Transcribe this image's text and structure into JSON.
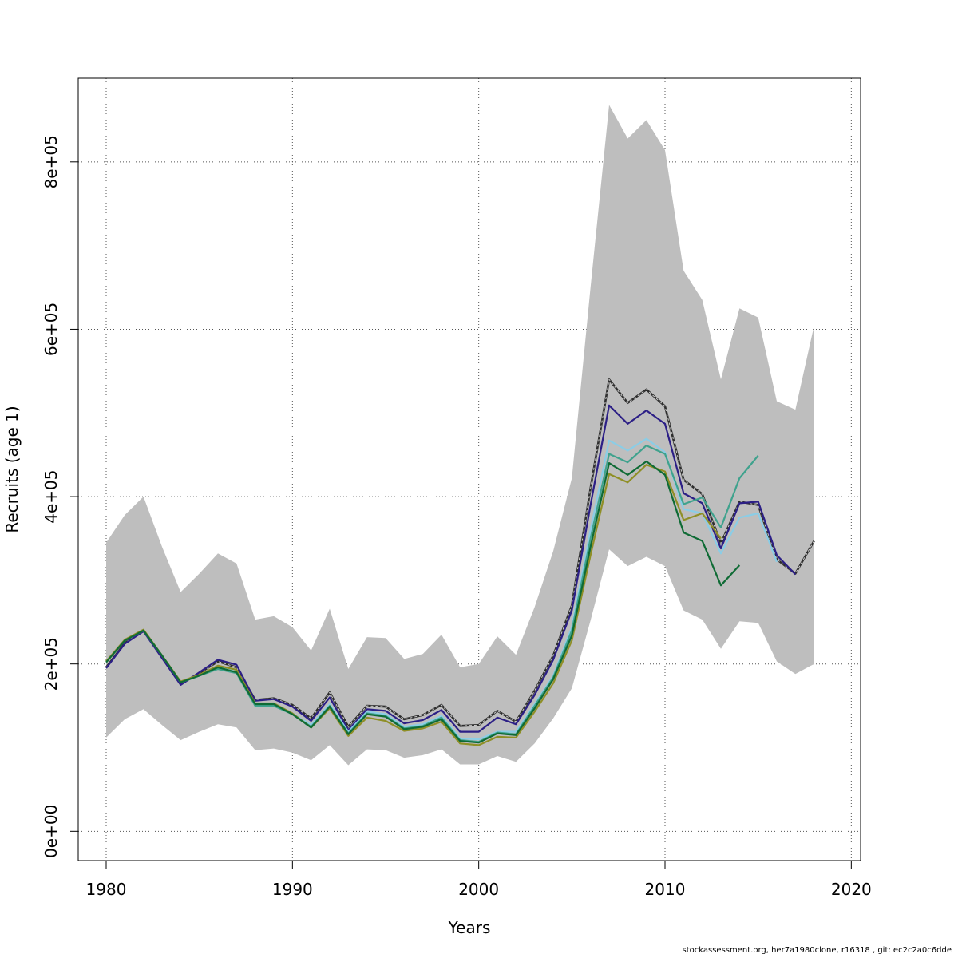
{
  "chart_data": {
    "type": "line",
    "title": "",
    "xlabel": "Years",
    "ylabel": "Recruits (age 1)",
    "xlim": [
      1978.5,
      2020.5
    ],
    "ylim": [
      -35000,
      900000
    ],
    "xticks": [
      1980,
      1990,
      2000,
      2010,
      2020
    ],
    "xtick_labels": [
      "1980",
      "1990",
      "2000",
      "2010",
      "2020"
    ],
    "yticks": [
      0,
      200000,
      400000,
      600000,
      800000
    ],
    "ytick_labels": [
      "0e+00",
      "2e+05",
      "4e+05",
      "6e+05",
      "8e+05"
    ],
    "grid": true,
    "band": {
      "color": "#bebebe",
      "x": [
        1980,
        1981,
        1982,
        1983,
        1984,
        1985,
        1986,
        1987,
        1988,
        1989,
        1990,
        1991,
        1992,
        1993,
        1994,
        1995,
        1996,
        1997,
        1998,
        1999,
        2000,
        2001,
        2002,
        2003,
        2004,
        2005,
        2006,
        2007,
        2008,
        2009,
        2010,
        2011,
        2012,
        2013,
        2014,
        2015,
        2016,
        2017,
        2018
      ],
      "upper": [
        345000,
        378000,
        400000,
        340000,
        286000,
        308000,
        332000,
        320000,
        253000,
        257000,
        244000,
        216000,
        266000,
        194000,
        232000,
        231000,
        206000,
        212000,
        235000,
        196000,
        200000,
        233000,
        211000,
        268000,
        335000,
        422000,
        650000,
        868000,
        828000,
        850000,
        814000,
        670000,
        635000,
        540000,
        625000,
        614000,
        514000,
        504000,
        604000
      ],
      "lower": [
        112000,
        134000,
        146000,
        127000,
        109000,
        119000,
        128000,
        124000,
        97000,
        99000,
        94000,
        85000,
        103000,
        79000,
        98000,
        97000,
        88000,
        91000,
        98000,
        80000,
        80000,
        90000,
        83000,
        105000,
        135000,
        171000,
        252000,
        337000,
        317000,
        328000,
        317000,
        264000,
        253000,
        218000,
        251000,
        249000,
        203000,
        188000,
        200000
      ]
    },
    "series": [
      {
        "color": "#2e2e2e",
        "dashed": true,
        "x": [
          1980,
          1981,
          1982,
          1983,
          1984,
          1985,
          1986,
          1987,
          1988,
          1989,
          1990,
          1991,
          1992,
          1993,
          1994,
          1995,
          1996,
          1997,
          1998,
          1999,
          2000,
          2001,
          2002,
          2003,
          2004,
          2005,
          2006,
          2007,
          2008,
          2009,
          2010,
          2011,
          2012,
          2013,
          2014,
          2015,
          2016,
          2017,
          2018
        ],
        "values": [
          196000,
          225000,
          240000,
          208000,
          176000,
          189000,
          203000,
          196000,
          157000,
          159000,
          151000,
          135000,
          166000,
          125000,
          150000,
          149000,
          134000,
          139000,
          151000,
          126000,
          127000,
          144000,
          131000,
          168000,
          210000,
          270000,
          410000,
          540000,
          512000,
          528000,
          508000,
          420000,
          403000,
          344000,
          394000,
          390000,
          325000,
          308000,
          347000
        ]
      },
      {
        "color": "#2c1f86",
        "x": [
          1980,
          1981,
          1982,
          1983,
          1984,
          1985,
          1986,
          1987,
          1988,
          1989,
          1990,
          1991,
          1992,
          1993,
          1994,
          1995,
          1996,
          1997,
          1998,
          1999,
          2000,
          2001,
          2002,
          2003,
          2004,
          2005,
          2006,
          2007,
          2008,
          2009,
          2010,
          2011,
          2012,
          2013,
          2014,
          2015,
          2016,
          2017
        ],
        "values": [
          195000,
          224000,
          239000,
          207000,
          175000,
          190000,
          205000,
          199000,
          156000,
          158000,
          149000,
          132000,
          160000,
          121000,
          146000,
          144000,
          129000,
          133000,
          145000,
          119000,
          119000,
          136000,
          128000,
          163000,
          205000,
          264000,
          390000,
          509000,
          487000,
          503000,
          487000,
          404000,
          392000,
          338000,
          392000,
          394000,
          330000,
          307000
        ]
      },
      {
        "color": "#8bcde6",
        "x": [
          1980,
          1981,
          1982,
          1983,
          1984,
          1985,
          1986,
          1987,
          1988,
          1989,
          1990,
          1991,
          1992,
          1993,
          1994,
          1995,
          1996,
          1997,
          1998,
          1999,
          2000,
          2001,
          2002,
          2003,
          2004,
          2005,
          2006,
          2007,
          2008,
          2009,
          2010,
          2011,
          2012,
          2013,
          2014,
          2015,
          2016
        ],
        "values": [
          203000,
          228000,
          240000,
          210000,
          178000,
          186000,
          196000,
          191000,
          153000,
          153000,
          141000,
          127000,
          152000,
          119000,
          143000,
          140000,
          125000,
          128000,
          138000,
          111000,
          110000,
          119000,
          119000,
          152000,
          186000,
          244000,
          360000,
          467000,
          455000,
          469000,
          453000,
          385000,
          380000,
          332000,
          375000,
          380000,
          322000
        ]
      },
      {
        "color": "#3fa28d",
        "x": [
          1980,
          1981,
          1982,
          1983,
          1984,
          1985,
          1986,
          1987,
          1988,
          1989,
          1990,
          1991,
          1992,
          1993,
          1994,
          1995,
          1996,
          1997,
          1998,
          1999,
          2000,
          2001,
          2002,
          2003,
          2004,
          2005,
          2006,
          2007,
          2008,
          2009,
          2010,
          2011,
          2012,
          2013,
          2014,
          2015
        ],
        "values": [
          203000,
          228000,
          240000,
          210000,
          178000,
          186000,
          194000,
          189000,
          150000,
          150000,
          140000,
          125000,
          150000,
          117000,
          141000,
          138000,
          123000,
          126000,
          136000,
          109000,
          107000,
          118000,
          116000,
          150000,
          184000,
          240000,
          350000,
          451000,
          441000,
          461000,
          451000,
          391000,
          399000,
          363000,
          422000,
          449000
        ]
      },
      {
        "color": "#8f8f26",
        "x": [
          1980,
          1981,
          1982,
          1983,
          1984,
          1985,
          1986,
          1987,
          1988,
          1989,
          1990,
          1991,
          1992,
          1993,
          1994,
          1995,
          1996,
          1997,
          1998,
          1999,
          2000,
          2001,
          2002,
          2003,
          2004,
          2005,
          2006,
          2007,
          2008,
          2009,
          2010,
          2011,
          2012,
          2013
        ],
        "values": [
          203000,
          229000,
          241000,
          210000,
          179000,
          187000,
          198000,
          193000,
          153000,
          153000,
          141000,
          124000,
          147000,
          114000,
          136000,
          132000,
          120000,
          123000,
          131000,
          105000,
          103000,
          113000,
          112000,
          143000,
          177000,
          228000,
          330000,
          427000,
          417000,
          438000,
          430000,
          372000,
          380000,
          350000
        ]
      },
      {
        "color": "#0f6b35",
        "x": [
          1980,
          1981,
          1982,
          1983,
          1984,
          1985,
          1986,
          1987,
          1988,
          1989,
          1990,
          1991,
          1992,
          1993,
          1994,
          1995,
          1996,
          1997,
          1998,
          1999,
          2000,
          2001,
          2002,
          2003,
          2004,
          2005,
          2006,
          2007,
          2008,
          2009,
          2010,
          2011,
          2012,
          2013,
          2014
        ],
        "values": [
          202000,
          228000,
          240000,
          210000,
          178000,
          186000,
          196000,
          190000,
          152000,
          152000,
          140000,
          124000,
          149000,
          116000,
          140000,
          137000,
          122000,
          125000,
          134000,
          108000,
          106000,
          117000,
          115000,
          147000,
          182000,
          234000,
          340000,
          440000,
          426000,
          442000,
          426000,
          357000,
          347000,
          294000,
          318000
        ]
      }
    ]
  },
  "footer": {
    "text": "stockassessment.org, her7a1980clone, r16318 , git: ec2c2a0c6dde"
  }
}
